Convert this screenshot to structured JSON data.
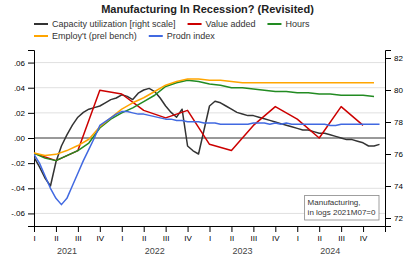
{
  "chart_data": {
    "type": "line",
    "title": "Manufacturing In Recession? (Revisited)",
    "xlim": [
      0,
      16
    ],
    "xticks": [
      {
        "value": 0,
        "label": "I"
      },
      {
        "value": 1,
        "label": "II"
      },
      {
        "value": 2,
        "label": "III"
      },
      {
        "value": 3,
        "label": "IV"
      },
      {
        "value": 4,
        "label": "I"
      },
      {
        "value": 5,
        "label": "II"
      },
      {
        "value": 6,
        "label": "III"
      },
      {
        "value": 7,
        "label": "IV"
      },
      {
        "value": 8,
        "label": "I"
      },
      {
        "value": 9,
        "label": "II"
      },
      {
        "value": 10,
        "label": "III"
      },
      {
        "value": 11,
        "label": "IV"
      },
      {
        "value": 12,
        "label": "I"
      },
      {
        "value": 13,
        "label": "II"
      },
      {
        "value": 14,
        "label": "III"
      },
      {
        "value": 15,
        "label": "IV"
      }
    ],
    "ylim": [
      -0.07,
      0.07
    ],
    "yticks": [
      {
        "value": -0.06,
        "label": "-.06"
      },
      {
        "value": -0.04,
        "label": "-.04"
      },
      {
        "value": -0.02,
        "label": "-.02"
      },
      {
        "value": 0.0,
        "label": ".00"
      },
      {
        "value": 0.02,
        "label": ".02"
      },
      {
        "value": 0.04,
        "label": ".04"
      },
      {
        "value": 0.06,
        "label": ".06"
      }
    ],
    "y2lim": [
      71.5,
      82.5
    ],
    "y2ticks": [
      72,
      74,
      76,
      78,
      80,
      82
    ],
    "grid": true,
    "legend": "top",
    "series": [
      {
        "name": "Capacity utilization [right scale]",
        "color": "#333333",
        "axis": "y2",
        "x": [
          0,
          0.25,
          0.5,
          0.75,
          1,
          1.25,
          1.5,
          1.75,
          2,
          2.25,
          2.5,
          2.75,
          3,
          3.25,
          3.5,
          3.75,
          4,
          4.25,
          4.5,
          4.75,
          5,
          5.25,
          5.5,
          5.75,
          6,
          6.25,
          6.5,
          6.75,
          7,
          7.25,
          7.5,
          7.75,
          8,
          8.25,
          8.5,
          8.75,
          9,
          9.25,
          9.5,
          9.75,
          10,
          10.25,
          10.5,
          10.75,
          11,
          11.25,
          11.5,
          11.75,
          12,
          12.25,
          12.5,
          12.75,
          13,
          13.25,
          13.5,
          13.75,
          14,
          14.25,
          14.5,
          14.75,
          15,
          15.25,
          15.5,
          15.75
        ],
        "values": [
          75.8,
          75.2,
          74.5,
          74.0,
          75.5,
          76.5,
          77.2,
          77.8,
          78.3,
          78.6,
          78.8,
          78.9,
          79.0,
          79.2,
          79.4,
          79.5,
          79.7,
          79.6,
          79.4,
          79.8,
          80.0,
          80.1,
          79.9,
          79.5,
          79.0,
          78.6,
          78.3,
          78.8,
          76.5,
          76.2,
          76.0,
          77.5,
          79.0,
          79.3,
          79.2,
          79.0,
          78.8,
          78.6,
          78.5,
          78.4,
          78.4,
          78.3,
          78.2,
          78.1,
          78.0,
          77.9,
          77.8,
          77.7,
          77.6,
          77.5,
          77.5,
          77.4,
          77.3,
          77.3,
          77.2,
          77.1,
          77.0,
          76.9,
          76.9,
          76.8,
          76.7,
          76.5,
          76.5,
          76.6
        ]
      },
      {
        "name": "Value added",
        "color": "#cc0000",
        "x": [
          0,
          1,
          2,
          3,
          4,
          5,
          6,
          7,
          8,
          9,
          10,
          11,
          12,
          13,
          14,
          15
        ],
        "values": [
          -0.012,
          -0.018,
          -0.01,
          0.038,
          0.035,
          0.022,
          0.016,
          0.022,
          -0.005,
          -0.01,
          0.01,
          0.025,
          0.015,
          0.0,
          0.025,
          0.01
        ]
      },
      {
        "name": "Hours",
        "color": "#228B22",
        "x": [
          0,
          0.5,
          1,
          1.5,
          2,
          2.5,
          3,
          3.5,
          4,
          4.5,
          5,
          5.5,
          6,
          6.5,
          7,
          7.5,
          8,
          8.5,
          9,
          9.5,
          10,
          10.5,
          11,
          11.5,
          12,
          12.5,
          13,
          13.5,
          14,
          14.5,
          15,
          15.5
        ],
        "values": [
          -0.012,
          -0.016,
          -0.018,
          -0.014,
          -0.01,
          -0.004,
          0.008,
          0.015,
          0.02,
          0.024,
          0.029,
          0.034,
          0.041,
          0.044,
          0.046,
          0.045,
          0.043,
          0.042,
          0.04,
          0.04,
          0.039,
          0.038,
          0.037,
          0.037,
          0.036,
          0.036,
          0.035,
          0.035,
          0.034,
          0.034,
          0.034,
          0.033
        ]
      },
      {
        "name": "Employ't (prel bench)",
        "color": "#FFA500",
        "x": [
          0,
          0.5,
          1,
          1.5,
          2,
          2.5,
          3,
          3.5,
          4,
          4.5,
          5,
          5.5,
          6,
          6.5,
          7,
          7.5,
          8,
          8.5,
          9,
          9.5,
          10,
          10.5,
          11,
          11.5,
          12,
          12.5,
          13,
          13.5,
          14,
          14.5,
          15,
          15.5
        ],
        "values": [
          -0.012,
          -0.014,
          -0.013,
          -0.01,
          -0.006,
          -0.001,
          0.009,
          0.016,
          0.023,
          0.028,
          0.032,
          0.037,
          0.042,
          0.045,
          0.047,
          0.047,
          0.046,
          0.046,
          0.045,
          0.044,
          0.044,
          0.044,
          0.044,
          0.044,
          0.044,
          0.044,
          0.044,
          0.044,
          0.044,
          0.044,
          0.044,
          0.044
        ]
      },
      {
        "name": "Prodn index",
        "color": "#4169E1",
        "x": [
          0,
          0.25,
          0.5,
          0.75,
          1,
          1.25,
          1.5,
          1.75,
          2,
          2.25,
          2.5,
          2.75,
          3,
          3.25,
          3.5,
          3.75,
          4,
          4.25,
          4.5,
          4.75,
          5,
          5.25,
          5.5,
          5.75,
          6,
          6.25,
          6.5,
          6.75,
          7,
          7.25,
          7.5,
          7.75,
          8,
          8.25,
          8.5,
          8.75,
          9,
          9.25,
          9.5,
          9.75,
          10,
          10.25,
          10.5,
          10.75,
          11,
          11.25,
          11.5,
          11.75,
          12,
          12.25,
          12.5,
          12.75,
          13,
          13.25,
          13.5,
          13.75,
          14,
          14.25,
          14.5,
          14.75,
          15,
          15.25,
          15.5,
          15.75
        ],
        "values": [
          -0.013,
          -0.02,
          -0.03,
          -0.04,
          -0.048,
          -0.053,
          -0.048,
          -0.038,
          -0.028,
          -0.018,
          -0.009,
          0.0,
          0.01,
          0.013,
          0.016,
          0.019,
          0.021,
          0.021,
          0.02,
          0.019,
          0.019,
          0.018,
          0.017,
          0.016,
          0.015,
          0.015,
          0.014,
          0.014,
          0.013,
          0.013,
          0.013,
          0.012,
          0.012,
          0.012,
          0.011,
          0.011,
          0.011,
          0.011,
          0.011,
          0.011,
          0.012,
          0.012,
          0.012,
          0.011,
          0.012,
          0.011,
          0.012,
          0.011,
          0.011,
          0.011,
          0.011,
          0.011,
          0.011,
          0.011,
          0.01,
          0.01,
          0.011,
          0.011,
          0.011,
          0.011,
          0.011,
          0.011,
          0.011,
          0.011
        ]
      }
    ],
    "annotations": [
      {
        "text": "Manufacturing,\nin logs 2021M07=0"
      },
      {
        "text": "2021",
        "x": 1.5
      },
      {
        "text": "2022",
        "x": 5.5
      },
      {
        "text": "2023",
        "x": 9.5
      },
      {
        "text": "2024",
        "x": 13.5
      }
    ]
  }
}
